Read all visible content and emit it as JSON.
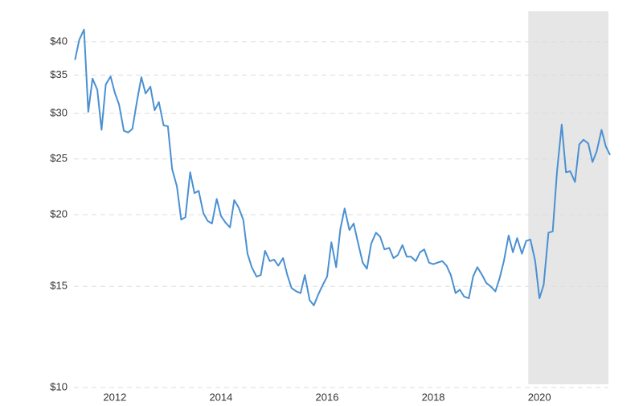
{
  "chart_data": {
    "type": "line",
    "log_scale_y": true,
    "grid": true,
    "xlim": [
      2011.23,
      2021.3
    ],
    "ylim": [
      10,
      45.2
    ],
    "xticks": [
      2012,
      2014,
      2016,
      2018,
      2020
    ],
    "yticks": [
      {
        "value": 10,
        "label": "$10"
      },
      {
        "value": 15,
        "label": "$15"
      },
      {
        "value": 20,
        "label": "$20"
      },
      {
        "value": 25,
        "label": "$25"
      },
      {
        "value": 30,
        "label": "$30"
      },
      {
        "value": 35,
        "label": "$35"
      },
      {
        "value": 40,
        "label": "$40"
      }
    ],
    "shaded_region": {
      "x": [
        2019.79,
        2021.3
      ],
      "color": "#e6e6e6"
    },
    "series": [
      {
        "color": "#4a90d2",
        "x": [
          2011.25,
          2011.33,
          2011.42,
          2011.5,
          2011.58,
          2011.67,
          2011.75,
          2011.83,
          2011.92,
          2012,
          2012.08,
          2012.17,
          2012.25,
          2012.33,
          2012.42,
          2012.5,
          2012.58,
          2012.67,
          2012.75,
          2012.83,
          2012.92,
          2013,
          2013.08,
          2013.17,
          2013.25,
          2013.33,
          2013.42,
          2013.5,
          2013.58,
          2013.67,
          2013.75,
          2013.83,
          2013.92,
          2014,
          2014.08,
          2014.17,
          2014.25,
          2014.33,
          2014.42,
          2014.5,
          2014.58,
          2014.67,
          2014.75,
          2014.83,
          2014.92,
          2015,
          2015.08,
          2015.17,
          2015.25,
          2015.33,
          2015.42,
          2015.5,
          2015.58,
          2015.67,
          2015.75,
          2015.83,
          2015.92,
          2016,
          2016.08,
          2016.17,
          2016.25,
          2016.33,
          2016.42,
          2016.5,
          2016.58,
          2016.67,
          2016.75,
          2016.83,
          2016.92,
          2017,
          2017.08,
          2017.17,
          2017.25,
          2017.33,
          2017.42,
          2017.5,
          2017.58,
          2017.67,
          2017.75,
          2017.83,
          2017.92,
          2018,
          2018.08,
          2018.17,
          2018.25,
          2018.33,
          2018.42,
          2018.5,
          2018.58,
          2018.67,
          2018.75,
          2018.83,
          2018.92,
          2019,
          2019.08,
          2019.17,
          2019.25,
          2019.33,
          2019.42,
          2019.5,
          2019.58,
          2019.67,
          2019.75,
          2019.83,
          2019.92,
          2020,
          2020.08,
          2020.17,
          2020.25,
          2020.33,
          2020.42,
          2020.5,
          2020.58,
          2020.67,
          2020.75,
          2020.83,
          2020.92,
          2021,
          2021.08,
          2021.17,
          2021.25,
          2021.33
        ],
        "values": [
          37.2,
          40.3,
          42.0,
          30.2,
          34.5,
          33.0,
          28.1,
          33.7,
          34.8,
          32.6,
          31.1,
          28.0,
          27.8,
          28.2,
          31.6,
          34.7,
          32.5,
          33.4,
          30.4,
          31.4,
          28.6,
          28.5,
          24.0,
          22.4,
          19.6,
          19.8,
          23.7,
          21.8,
          22.0,
          20.1,
          19.5,
          19.3,
          21.3,
          19.9,
          19.4,
          19.0,
          21.2,
          20.6,
          19.6,
          17.1,
          16.2,
          15.6,
          15.7,
          17.3,
          16.6,
          16.7,
          16.3,
          16.8,
          15.7,
          14.9,
          14.7,
          14.6,
          15.7,
          14.2,
          13.9,
          14.5,
          15.1,
          15.6,
          17.9,
          16.2,
          18.9,
          20.5,
          18.8,
          19.3,
          17.9,
          16.5,
          16.1,
          17.8,
          18.6,
          18.3,
          17.4,
          17.5,
          16.8,
          17.0,
          17.7,
          16.9,
          16.9,
          16.6,
          17.2,
          17.4,
          16.5,
          16.4,
          16.5,
          16.6,
          16.3,
          15.7,
          14.6,
          14.8,
          14.4,
          14.3,
          15.6,
          16.2,
          15.7,
          15.2,
          15.0,
          14.7,
          15.5,
          16.6,
          18.4,
          17.2,
          18.2,
          17.1,
          18.0,
          18.1,
          16.6,
          14.3,
          15.1,
          18.6,
          18.7,
          23.7,
          28.7,
          23.7,
          23.8,
          22.8,
          26.5,
          27.0,
          26.6,
          24.7,
          25.8,
          28.1,
          26.3,
          25.4
        ]
      }
    ]
  }
}
